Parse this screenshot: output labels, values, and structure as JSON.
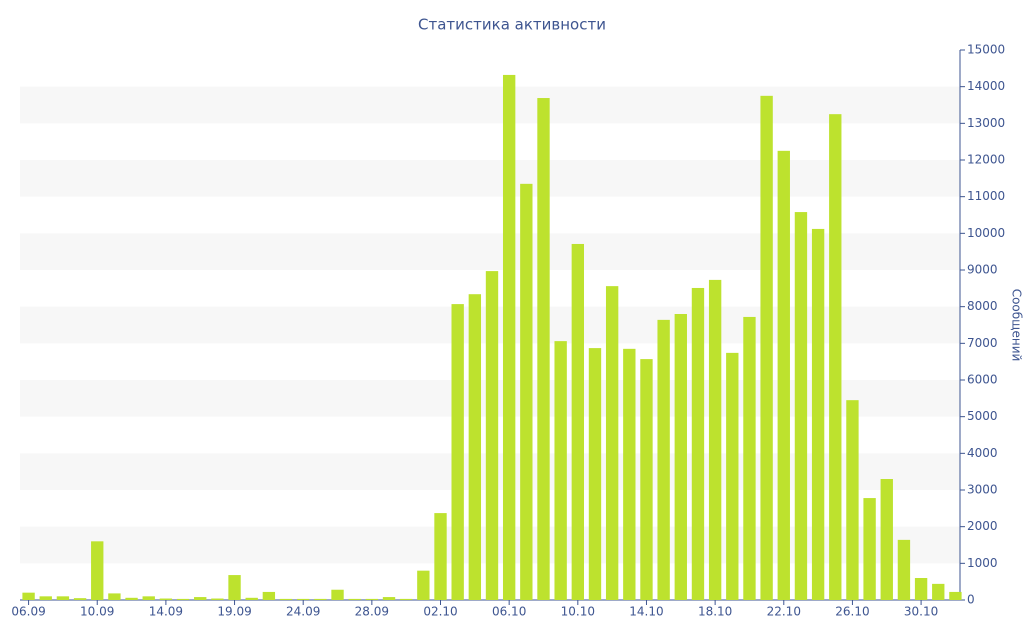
{
  "chart_data": {
    "type": "bar",
    "title": "Статистика активности",
    "y_axis_label": "Сообщений",
    "y_axis_side": "right",
    "color": "#bde22e",
    "grid_bands": true,
    "categories": [
      "06.09",
      null,
      null,
      null,
      "10.09",
      null,
      null,
      null,
      "14.09",
      null,
      null,
      null,
      "19.09",
      null,
      null,
      null,
      "24.09",
      null,
      null,
      null,
      "28.09",
      null,
      null,
      null,
      "02.10",
      null,
      null,
      null,
      "06.10",
      null,
      null,
      null,
      "10.10",
      null,
      null,
      null,
      "14.10",
      null,
      null,
      null,
      "18.10",
      null,
      null,
      null,
      "22.10",
      null,
      null,
      null,
      "26.10",
      null,
      null,
      null,
      "30.10",
      null,
      null
    ],
    "values": [
      200,
      100,
      100,
      50,
      1600,
      180,
      60,
      100,
      40,
      30,
      80,
      40,
      680,
      60,
      220,
      30,
      30,
      30,
      280,
      30,
      30,
      80,
      30,
      800,
      2370,
      8070,
      8340,
      8970,
      14320,
      11350,
      13690,
      7060,
      9710,
      6870,
      8560,
      6850,
      6570,
      7640,
      7800,
      8510,
      8730,
      6740,
      7720,
      13750,
      12250,
      10580,
      10120,
      13250,
      5450,
      2780,
      3300,
      1640,
      600,
      440,
      220
    ],
    "ylim": [
      0,
      15000
    ],
    "yticks": [
      0,
      1000,
      2000,
      3000,
      4000,
      5000,
      6000,
      7000,
      8000,
      9000,
      10000,
      11000,
      12000,
      13000,
      14000,
      15000
    ]
  }
}
